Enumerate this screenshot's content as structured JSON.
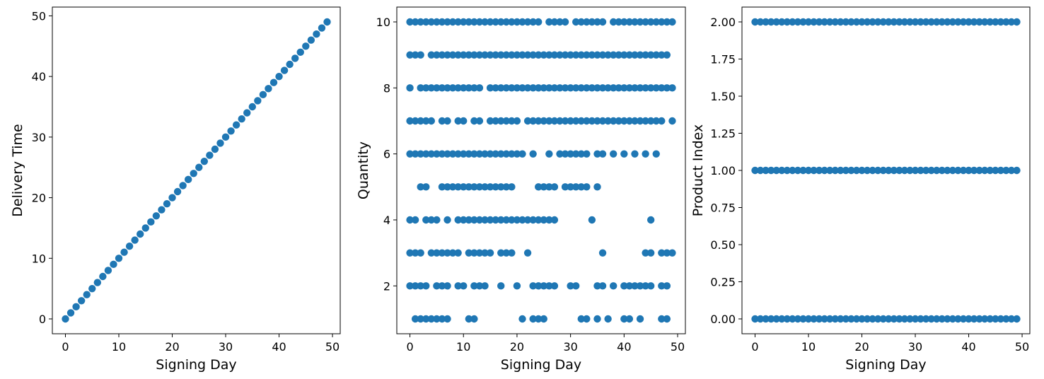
{
  "chart_data": [
    {
      "type": "scatter",
      "xlabel": "Signing Day",
      "ylabel": "Delivery Time",
      "xlim": [
        -2.45,
        51.45
      ],
      "ylim": [
        -2.45,
        51.45
      ],
      "xticks": [
        0,
        10,
        20,
        30,
        40,
        50
      ],
      "yticks": [
        0,
        10,
        20,
        30,
        40,
        50
      ],
      "ytick_labels": [
        "0",
        "10",
        "20",
        "30",
        "40",
        "50"
      ],
      "color": "#1f77b4",
      "series": [
        {
          "points_by_x": [
            [
              0
            ],
            [
              1
            ],
            [
              2
            ],
            [
              3
            ],
            [
              4
            ],
            [
              5
            ],
            [
              6
            ],
            [
              7
            ],
            [
              8
            ],
            [
              9
            ],
            [
              10
            ],
            [
              11
            ],
            [
              12
            ],
            [
              13
            ],
            [
              14
            ],
            [
              15
            ],
            [
              16
            ],
            [
              17
            ],
            [
              18
            ],
            [
              19
            ],
            [
              20
            ],
            [
              21
            ],
            [
              22
            ],
            [
              23
            ],
            [
              24
            ],
            [
              25
            ],
            [
              26
            ],
            [
              27
            ],
            [
              28
            ],
            [
              29
            ],
            [
              30
            ],
            [
              31
            ],
            [
              32
            ],
            [
              33
            ],
            [
              34
            ],
            [
              35
            ],
            [
              36
            ],
            [
              37
            ],
            [
              38
            ],
            [
              39
            ],
            [
              40
            ],
            [
              41
            ],
            [
              42
            ],
            [
              43
            ],
            [
              44
            ],
            [
              45
            ],
            [
              46
            ],
            [
              47
            ],
            [
              48
            ],
            [
              49
            ]
          ]
        }
      ]
    },
    {
      "type": "scatter",
      "xlabel": "Signing Day",
      "ylabel": "Quantity",
      "xlim": [
        -2.45,
        51.45
      ],
      "ylim": [
        0.55,
        10.45
      ],
      "xticks": [
        0,
        10,
        20,
        30,
        40,
        50
      ],
      "yticks": [
        2,
        4,
        6,
        8,
        10
      ],
      "ytick_labels": [
        "2",
        "4",
        "6",
        "8",
        "10"
      ],
      "color": "#1f77b4",
      "series": [
        {
          "points_by_x": [
            [
              10,
              9,
              8,
              7,
              6,
              4,
              3,
              2
            ],
            [
              10,
              9,
              7,
              6,
              4,
              3,
              2,
              1
            ],
            [
              10,
              9,
              8,
              7,
              6,
              5,
              3,
              2,
              1
            ],
            [
              10,
              8,
              7,
              6,
              5,
              4,
              2,
              1
            ],
            [
              10,
              9,
              8,
              7,
              6,
              4,
              3,
              1
            ],
            [
              10,
              9,
              8,
              6,
              4,
              3,
              2,
              1
            ],
            [
              10,
              9,
              8,
              7,
              6,
              5,
              3,
              2,
              1
            ],
            [
              10,
              9,
              8,
              7,
              6,
              5,
              4,
              3,
              2,
              1
            ],
            [
              10,
              9,
              8,
              6,
              5,
              3
            ],
            [
              10,
              9,
              8,
              7,
              6,
              5,
              4,
              3,
              2
            ],
            [
              10,
              9,
              8,
              7,
              6,
              5,
              4,
              2
            ],
            [
              10,
              9,
              8,
              6,
              5,
              4,
              3,
              1
            ],
            [
              10,
              9,
              8,
              7,
              6,
              5,
              4,
              3,
              2,
              1
            ],
            [
              10,
              9,
              8,
              7,
              6,
              5,
              4,
              3,
              2
            ],
            [
              10,
              9,
              6,
              5,
              4,
              3,
              2
            ],
            [
              10,
              9,
              8,
              7,
              6,
              5,
              4,
              3
            ],
            [
              10,
              9,
              8,
              7,
              6,
              5,
              4
            ],
            [
              10,
              9,
              8,
              7,
              6,
              5,
              4,
              3,
              2
            ],
            [
              10,
              9,
              8,
              7,
              6,
              5,
              4,
              3
            ],
            [
              10,
              9,
              8,
              7,
              6,
              5,
              4,
              3
            ],
            [
              10,
              9,
              8,
              7,
              6,
              4,
              2
            ],
            [
              10,
              9,
              8,
              6,
              4,
              1
            ],
            [
              10,
              9,
              8,
              7,
              4,
              3
            ],
            [
              10,
              9,
              8,
              7,
              6,
              4,
              2,
              1
            ],
            [
              10,
              9,
              8,
              7,
              5,
              4,
              2,
              1
            ],
            [
              9,
              8,
              7,
              5,
              4,
              2,
              1
            ],
            [
              10,
              9,
              8,
              7,
              6,
              5,
              4,
              2
            ],
            [
              10,
              9,
              8,
              7,
              5,
              4,
              2
            ],
            [
              10,
              9,
              8,
              7,
              6
            ],
            [
              10,
              9,
              8,
              7,
              6,
              5
            ],
            [
              9,
              8,
              7,
              6,
              5,
              2
            ],
            [
              10,
              9,
              8,
              7,
              6,
              5,
              2
            ],
            [
              10,
              9,
              8,
              7,
              6,
              5,
              1
            ],
            [
              10,
              9,
              8,
              7,
              6,
              5,
              1
            ],
            [
              10,
              9,
              8,
              7,
              4
            ],
            [
              10,
              9,
              8,
              7,
              6,
              5,
              2,
              1
            ],
            [
              10,
              9,
              8,
              7,
              6,
              3,
              2
            ],
            [
              9,
              8,
              7,
              1
            ],
            [
              10,
              9,
              8,
              7,
              6,
              2
            ],
            [
              10,
              9,
              8,
              7
            ],
            [
              10,
              9,
              8,
              7,
              6,
              2,
              1
            ],
            [
              10,
              9,
              8,
              7,
              2,
              1
            ],
            [
              10,
              9,
              8,
              7,
              6,
              2
            ],
            [
              10,
              9,
              8,
              7,
              2,
              1
            ],
            [
              10,
              9,
              8,
              7,
              6,
              3,
              2
            ],
            [
              10,
              9,
              8,
              7,
              4,
              3,
              2
            ],
            [
              10,
              9,
              8,
              7,
              6
            ],
            [
              10,
              9,
              8,
              7,
              3,
              2,
              1
            ],
            [
              10,
              9,
              8,
              3,
              2,
              1
            ],
            [
              10,
              8,
              7,
              3
            ]
          ]
        }
      ]
    },
    {
      "type": "scatter",
      "xlabel": "Signing Day",
      "ylabel": "Product Index",
      "xlim": [
        -2.45,
        51.45
      ],
      "ylim": [
        -0.1,
        2.1
      ],
      "xticks": [
        0,
        10,
        20,
        30,
        40,
        50
      ],
      "yticks": [
        0,
        0.25,
        0.5,
        0.75,
        1.0,
        1.25,
        1.5,
        1.75,
        2.0
      ],
      "ytick_labels": [
        "0.00",
        "0.25",
        "0.50",
        "0.75",
        "1.00",
        "1.25",
        "1.50",
        "1.75",
        "2.00"
      ],
      "color": "#1f77b4",
      "series": [
        {
          "points_by_x": [
            [
              0,
              1,
              2
            ],
            [
              0,
              1,
              2
            ],
            [
              0,
              1,
              2
            ],
            [
              0,
              1,
              2
            ],
            [
              0,
              1,
              2
            ],
            [
              0,
              1,
              2
            ],
            [
              0,
              1,
              2
            ],
            [
              0,
              1,
              2
            ],
            [
              0,
              1,
              2
            ],
            [
              0,
              1,
              2
            ],
            [
              0,
              1,
              2
            ],
            [
              0,
              1,
              2
            ],
            [
              0,
              1,
              2
            ],
            [
              0,
              1,
              2
            ],
            [
              0,
              1,
              2
            ],
            [
              0,
              1,
              2
            ],
            [
              0,
              1,
              2
            ],
            [
              0,
              1,
              2
            ],
            [
              0,
              1,
              2
            ],
            [
              0,
              1,
              2
            ],
            [
              0,
              1,
              2
            ],
            [
              0,
              1,
              2
            ],
            [
              0,
              1,
              2
            ],
            [
              0,
              1,
              2
            ],
            [
              0,
              1,
              2
            ],
            [
              0,
              1,
              2
            ],
            [
              0,
              1,
              2
            ],
            [
              0,
              1,
              2
            ],
            [
              0,
              1,
              2
            ],
            [
              0,
              1,
              2
            ],
            [
              0,
              1,
              2
            ],
            [
              0,
              1,
              2
            ],
            [
              0,
              1,
              2
            ],
            [
              0,
              1,
              2
            ],
            [
              0,
              1,
              2
            ],
            [
              0,
              1,
              2
            ],
            [
              0,
              1,
              2
            ],
            [
              0,
              1,
              2
            ],
            [
              0,
              1,
              2
            ],
            [
              0,
              1,
              2
            ],
            [
              0,
              1,
              2
            ],
            [
              0,
              1,
              2
            ],
            [
              0,
              1,
              2
            ],
            [
              0,
              1,
              2
            ],
            [
              0,
              1,
              2
            ],
            [
              0,
              1,
              2
            ],
            [
              0,
              1,
              2
            ],
            [
              0,
              1,
              2
            ],
            [
              0,
              1,
              2
            ],
            [
              0,
              1,
              2
            ]
          ]
        }
      ]
    }
  ]
}
